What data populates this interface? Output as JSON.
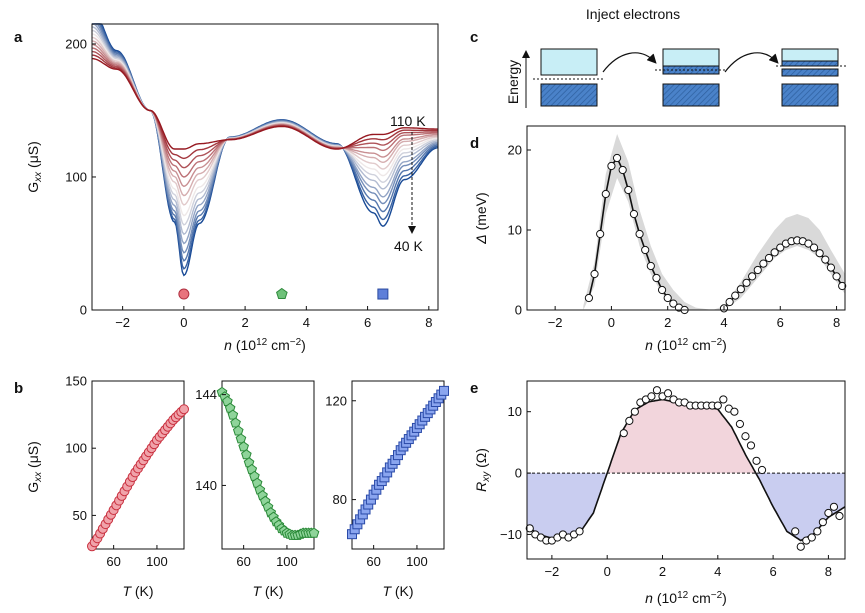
{
  "figure": {
    "panel_labels": [
      "a",
      "b",
      "c",
      "d",
      "e"
    ]
  },
  "chart_data": [
    {
      "panel": "a",
      "type": "line",
      "title": "",
      "xlabel": "n (10^12 cm^-2)",
      "ylabel": "G_xx (μS)",
      "xlim": [
        -3,
        8.3
      ],
      "ylim": [
        0,
        215
      ],
      "xticks": [
        -2,
        0,
        2,
        4,
        6,
        8
      ],
      "yticks": [
        0,
        100,
        200
      ],
      "annotations": {
        "high_T": "110 K",
        "low_T": "40 K"
      },
      "series_temperatures_K": [
        40,
        45,
        50,
        55,
        60,
        65,
        70,
        75,
        80,
        85,
        90,
        95,
        100,
        105,
        110
      ],
      "minimum_at_CNP_vs_T": [
        26,
        31,
        37,
        43,
        50,
        57,
        64,
        71,
        79,
        86,
        93,
        100,
        107,
        114,
        121
      ],
      "minimum_at_n6_5_vs_T": [
        63,
        68,
        74,
        80,
        85,
        91,
        96,
        101,
        106,
        111,
        115,
        120,
        124,
        128,
        132
      ],
      "markers": [
        {
          "n": 0,
          "shape": "circle",
          "color": "#e8737d"
        },
        {
          "n": 3.2,
          "shape": "pentagon",
          "color": "#6fc27a"
        },
        {
          "n": 6.5,
          "shape": "square",
          "color": "#5e7fd9"
        }
      ]
    },
    {
      "panel": "b-left",
      "type": "scatter",
      "xlabel": "T (K)",
      "ylabel": "G_xx (μS)",
      "xlim": [
        40,
        125
      ],
      "ylim": [
        25,
        150
      ],
      "xticks": [
        60,
        100
      ],
      "yticks": [
        50,
        100,
        150
      ],
      "x": [
        40,
        45,
        50,
        55,
        60,
        65,
        70,
        75,
        80,
        85,
        90,
        95,
        100,
        105,
        110,
        115,
        120,
        125
      ],
      "y": [
        27,
        33,
        40,
        47,
        54,
        61,
        68,
        75,
        82,
        88,
        94,
        100,
        106,
        111,
        116,
        121,
        125,
        129
      ]
    },
    {
      "panel": "b-middle",
      "type": "scatter",
      "xlabel": "T (K)",
      "ylabel": "",
      "xlim": [
        40,
        125
      ],
      "ylim": [
        137.2,
        144.6
      ],
      "xticks": [
        60,
        100
      ],
      "yticks": [
        140,
        144
      ],
      "x": [
        40,
        45,
        50,
        55,
        60,
        65,
        70,
        75,
        80,
        85,
        90,
        95,
        100,
        105,
        110,
        115,
        120,
        125
      ],
      "y": [
        144.1,
        143.7,
        143.1,
        142.4,
        141.7,
        141.0,
        140.4,
        139.8,
        139.3,
        138.8,
        138.4,
        138.1,
        137.9,
        137.8,
        137.8,
        137.9,
        137.9,
        137.9
      ]
    },
    {
      "panel": "b-right",
      "type": "scatter",
      "xlabel": "T (K)",
      "ylabel": "",
      "xlim": [
        40,
        125
      ],
      "ylim": [
        60,
        128
      ],
      "xticks": [
        60,
        100
      ],
      "yticks": [
        80,
        120
      ],
      "x": [
        40,
        45,
        50,
        55,
        60,
        65,
        70,
        75,
        80,
        85,
        90,
        95,
        100,
        105,
        110,
        115,
        120,
        125
      ],
      "y": [
        66,
        70,
        74,
        78,
        82,
        86,
        89,
        93,
        96,
        100,
        103,
        106,
        109,
        112,
        115,
        118,
        121,
        124
      ]
    },
    {
      "panel": "c",
      "type": "diagram",
      "title": "Inject electrons",
      "ylabel": "Energy",
      "steps": 3
    },
    {
      "panel": "d",
      "type": "line",
      "xlabel": "n (10^12 cm^-2)",
      "ylabel": "Δ (meV)",
      "xlim": [
        -3,
        8.3
      ],
      "ylim": [
        0,
        23
      ],
      "xticks": [
        -2,
        0,
        2,
        4,
        6,
        8
      ],
      "yticks": [
        0,
        10,
        20
      ],
      "x": [
        -0.8,
        -0.6,
        -0.4,
        -0.2,
        0.0,
        0.2,
        0.4,
        0.6,
        0.8,
        1.0,
        1.2,
        1.4,
        1.6,
        1.8,
        2.0,
        2.2,
        2.4,
        2.6,
        4.0,
        4.2,
        4.4,
        4.6,
        4.8,
        5.0,
        5.2,
        5.4,
        5.6,
        5.8,
        6.0,
        6.2,
        6.4,
        6.6,
        6.8,
        7.0,
        7.2,
        7.4,
        7.6,
        7.8,
        8.0,
        8.2
      ],
      "y": [
        1.5,
        4.5,
        9.5,
        14.5,
        18.0,
        19.0,
        17.5,
        15.0,
        12.0,
        9.5,
        7.5,
        5.5,
        4.0,
        2.5,
        1.5,
        0.8,
        0.3,
        0.0,
        0.2,
        1.0,
        1.8,
        2.6,
        3.4,
        4.2,
        5.0,
        5.8,
        6.5,
        7.2,
        7.8,
        8.3,
        8.6,
        8.7,
        8.6,
        8.3,
        7.8,
        7.1,
        6.3,
        5.3,
        4.2,
        3.0
      ],
      "band_x": [
        -1.0,
        -0.6,
        -0.2,
        0.2,
        0.6,
        1.0,
        1.4,
        1.8,
        2.2,
        2.6,
        3.0,
        3.6,
        4.0,
        4.6,
        5.2,
        5.8,
        6.2,
        6.6,
        7.0,
        7.4,
        7.8,
        8.3
      ],
      "band_upper": [
        0.5,
        6.0,
        17.0,
        22.0,
        18.5,
        12.5,
        8.0,
        4.5,
        2.5,
        1.0,
        0.3,
        0.0,
        0.5,
        3.5,
        7.0,
        10.0,
        11.5,
        12.0,
        11.5,
        10.0,
        7.5,
        4.5
      ],
      "band_lower": [
        0.0,
        3.0,
        12.0,
        16.5,
        13.5,
        8.0,
        4.5,
        2.0,
        0.5,
        0.0,
        0.0,
        0.0,
        0.0,
        1.5,
        4.0,
        6.5,
        7.5,
        8.0,
        7.5,
        6.5,
        4.5,
        2.0
      ]
    },
    {
      "panel": "e",
      "type": "line",
      "xlabel": "n (10^12 cm^-2)",
      "ylabel": "R_xy (Ω)",
      "xlim": [
        -2.9,
        8.6
      ],
      "ylim": [
        -14,
        15
      ],
      "xticks": [
        -2,
        0,
        2,
        4,
        6,
        8
      ],
      "yticks": [
        -10,
        0,
        10
      ],
      "fit_x": [
        -2.9,
        -2.5,
        -2.0,
        -1.5,
        -1.0,
        -0.5,
        0.0,
        0.5,
        1.0,
        1.5,
        2.0,
        2.5,
        3.0,
        3.5,
        4.0,
        4.5,
        5.0,
        5.5,
        6.0,
        6.5,
        7.0,
        7.5,
        8.0,
        8.6
      ],
      "fit_y": [
        -8.5,
        -10.0,
        -10.6,
        -10.5,
        -9.8,
        -6.5,
        0.0,
        6.5,
        10.3,
        11.6,
        12.0,
        11.5,
        11.0,
        10.9,
        10.4,
        7.5,
        3.0,
        -1.0,
        -5.5,
        -9.5,
        -11.0,
        -9.8,
        -7.2,
        -5.5
      ],
      "points_x": [
        -2.8,
        -2.6,
        -2.4,
        -2.2,
        -2.0,
        -1.8,
        -1.6,
        -1.4,
        -1.2,
        -1.0,
        0.6,
        0.8,
        1.0,
        1.2,
        1.4,
        1.6,
        1.8,
        2.0,
        2.2,
        2.4,
        2.6,
        2.8,
        3.0,
        3.2,
        3.4,
        3.6,
        3.8,
        4.0,
        4.2,
        4.4,
        4.6,
        4.8,
        5.0,
        5.2,
        5.4,
        5.6,
        6.8,
        7.0,
        7.2,
        7.4,
        7.6,
        7.8,
        8.0,
        8.2,
        8.4
      ],
      "points_y": [
        -9.0,
        -10.0,
        -10.5,
        -11.0,
        -11.0,
        -10.5,
        -10.0,
        -10.5,
        -10.0,
        -9.5,
        6.5,
        8.5,
        10.0,
        11.5,
        12.0,
        12.5,
        13.5,
        12.5,
        13.0,
        12.0,
        11.5,
        11.5,
        11.0,
        11.0,
        11.0,
        11.0,
        11.0,
        11.0,
        12.0,
        10.5,
        10.0,
        8.0,
        6.0,
        4.5,
        2.0,
        0.5,
        -9.5,
        -12.0,
        -11.0,
        -10.5,
        -9.5,
        -8.0,
        -6.5,
        -5.5,
        -7.0
      ],
      "fill_colors": {
        "positive": "#f2d5dc",
        "negative": "#c9cdf0"
      }
    }
  ]
}
